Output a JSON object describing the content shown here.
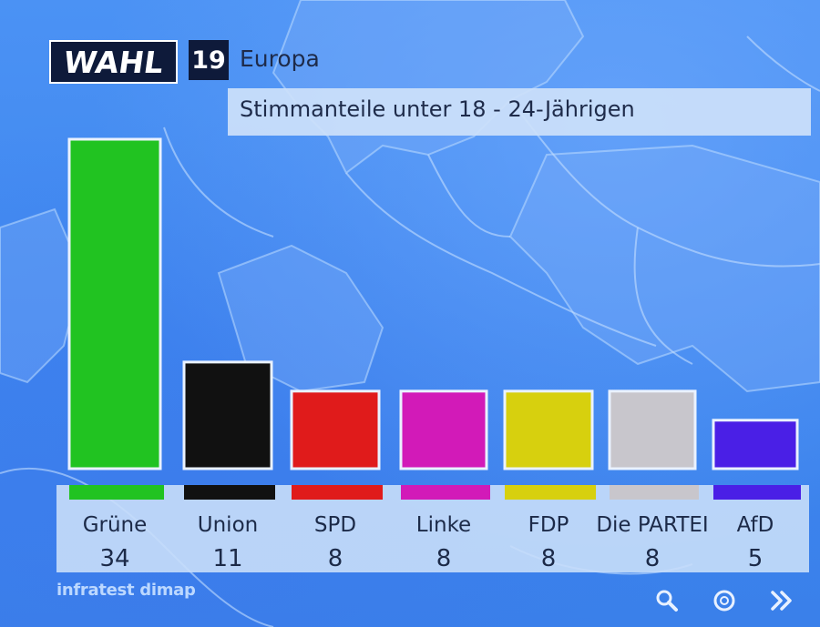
{
  "header": {
    "logo_text": "WAHL",
    "logo_year": "19",
    "election_name": "Europa",
    "subtitle": "Stimmanteile unter 18 - 24-Jährigen"
  },
  "source": "infratest dimap",
  "nav_icons": [
    "magnifier-icon",
    "circle-icon",
    "double-chevron-right-icon"
  ],
  "chart_data": {
    "type": "bar",
    "title": "Stimmanteile unter 18 - 24-Jährigen",
    "categories": [
      "Grüne",
      "Union",
      "SPD",
      "Linke",
      "FDP",
      "Die PARTEI",
      "AfD"
    ],
    "values": [
      34,
      11,
      8,
      8,
      8,
      8,
      5
    ],
    "value_labels": [
      "34",
      "11",
      "8",
      "8",
      "8",
      "8",
      "5"
    ],
    "colors": [
      "#21c321",
      "#111111",
      "#e01b1b",
      "#d21ab8",
      "#d7d00e",
      "#c8c6cc",
      "#4a1fe6"
    ],
    "xlabel": "",
    "ylabel": "",
    "grid": false,
    "legend": "none"
  }
}
